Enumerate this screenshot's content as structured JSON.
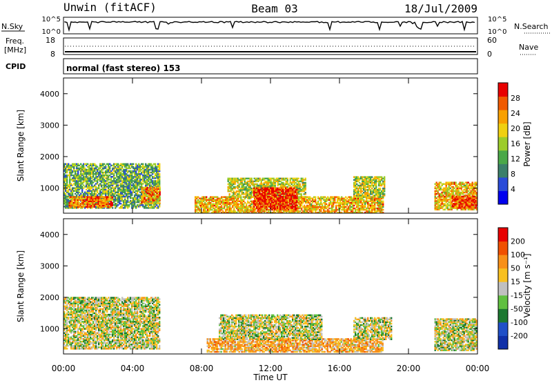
{
  "header": {
    "station": "Unwin (fitACF)",
    "beam": "Beam 03",
    "date": "18/Jul/2009"
  },
  "nsky": {
    "left_label": "N.Sky",
    "right_label": "N.Search",
    "ticks": [
      "10^5",
      "10^0"
    ]
  },
  "freq": {
    "left_label_1": "Freq.",
    "left_label_2": "[MHz]",
    "left_ticks": [
      "18",
      "8"
    ],
    "right_label": "Nave",
    "right_ticks": [
      "60",
      "0"
    ]
  },
  "cpid": {
    "label": "CPID",
    "value": "normal (fast stereo) 153"
  },
  "axes": {
    "x_ticks": [
      "00:00",
      "04:00",
      "08:00",
      "12:00",
      "16:00",
      "20:00",
      "00:00"
    ],
    "x_hours": [
      0,
      4,
      8,
      12,
      16,
      20,
      24
    ],
    "xlabel": "Time UT",
    "ylabel": "Slant Range [km]",
    "y_ticks": [
      "4000",
      "3000",
      "2000",
      "1000"
    ],
    "y_values": [
      4000,
      3000,
      2000,
      1000
    ],
    "ylim": [
      200,
      4500
    ],
    "xlim": [
      0,
      24
    ]
  },
  "power_scale": {
    "label": "Power [dB]",
    "ticks": [
      "28",
      "24",
      "20",
      "16",
      "12",
      "8",
      "4"
    ],
    "colors": [
      "#0000ee",
      "#2a4bd8",
      "#3b7f6a",
      "#4aa848",
      "#9ccc2a",
      "#f0d010",
      "#f8a000",
      "#f05a00",
      "#e80000"
    ]
  },
  "velocity_scale": {
    "label": "Velocity [m s⁻¹]",
    "ticks": [
      "200",
      "100",
      "50",
      "15",
      "-15",
      "-50",
      "-100",
      "-200"
    ],
    "colors": [
      "#1030a8",
      "#2050c8",
      "#1c7830",
      "#60c040",
      "#c0c0c0",
      "#f8c020",
      "#f89018",
      "#f05000",
      "#e80000"
    ]
  },
  "chart_data": {
    "type": "heatmap",
    "panels": [
      {
        "name": "Power",
        "z_unit": "dB",
        "zlim": [
          0,
          30
        ],
        "echo_regions": [
          {
            "t0": 0.0,
            "t1": 5.6,
            "r0": 350,
            "r1": 1750,
            "v": 12
          },
          {
            "t0": 0.3,
            "t1": 2.8,
            "r0": 380,
            "r1": 700,
            "v": 24
          },
          {
            "t0": 4.5,
            "t1": 5.6,
            "r0": 500,
            "r1": 1000,
            "v": 22
          },
          {
            "t0": 7.6,
            "t1": 18.5,
            "r0": 200,
            "r1": 700,
            "v": 20
          },
          {
            "t0": 9.5,
            "t1": 14.0,
            "r0": 700,
            "r1": 1300,
            "v": 16
          },
          {
            "t0": 11.0,
            "t1": 13.5,
            "r0": 300,
            "r1": 1000,
            "v": 28
          },
          {
            "t0": 16.8,
            "t1": 18.6,
            "r0": 700,
            "r1": 1350,
            "v": 16
          },
          {
            "t0": 21.5,
            "t1": 24.0,
            "r0": 300,
            "r1": 1200,
            "v": 20
          },
          {
            "t0": 22.5,
            "t1": 24.0,
            "r0": 350,
            "r1": 750,
            "v": 26
          }
        ]
      },
      {
        "name": "Velocity",
        "z_unit": "m s^-1",
        "zlim": [
          -250,
          250
        ],
        "echo_regions": [
          {
            "t0": 0.0,
            "t1": 5.6,
            "r0": 350,
            "r1": 2000,
            "v": 0
          },
          {
            "t0": 8.3,
            "t1": 18.5,
            "r0": 250,
            "r1": 700,
            "v": -50
          },
          {
            "t0": 9.0,
            "t1": 15.0,
            "r0": 650,
            "r1": 1450,
            "v": 0
          },
          {
            "t0": 16.8,
            "t1": 19.0,
            "r0": 650,
            "r1": 1350,
            "v": 0
          },
          {
            "t0": 21.5,
            "t1": 24.0,
            "r0": 300,
            "r1": 1300,
            "v": 0
          }
        ]
      }
    ]
  }
}
